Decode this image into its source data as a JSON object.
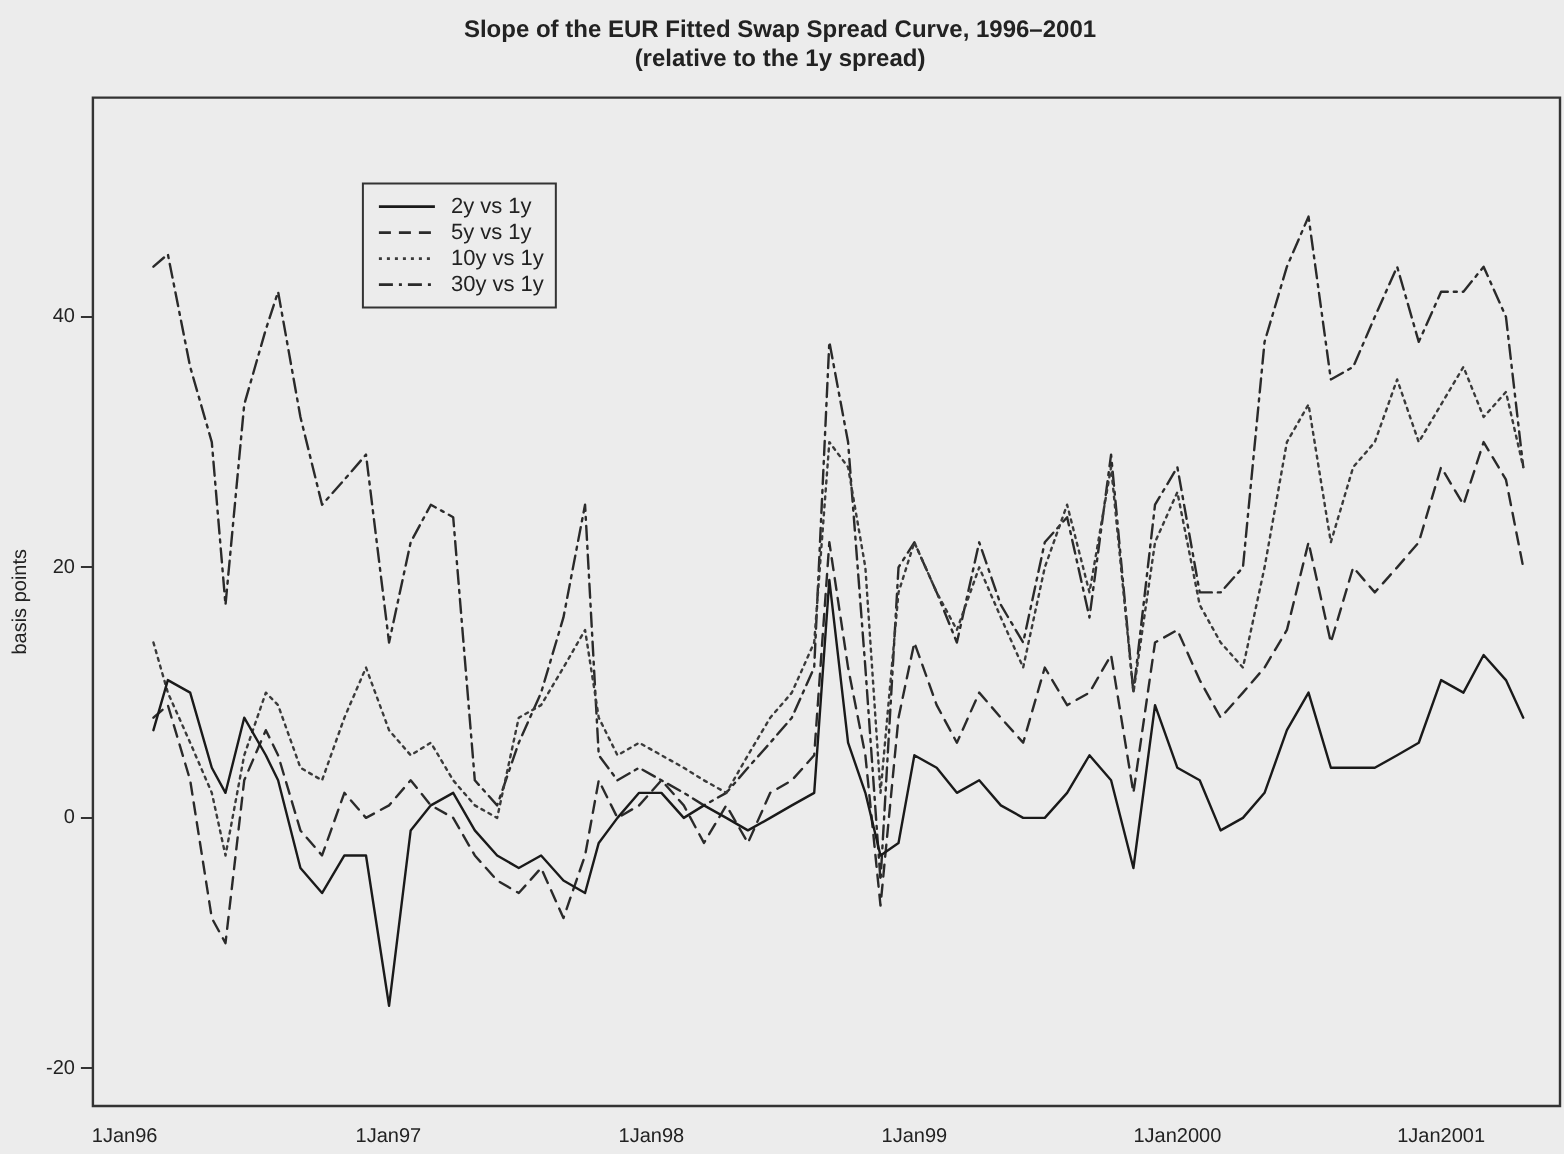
{
  "chart_data": {
    "type": "line",
    "title": "Slope of the EUR Fitted Swap Spread Curve, 1996–2001",
    "subtitle": "(relative to the 1y spread)",
    "ylabel": "basis points",
    "x": [
      "1996-02-10",
      "1996-03-01",
      "1996-04-01",
      "1996-05-01",
      "1996-05-20",
      "1996-06-15",
      "1996-07-15",
      "1996-08-01",
      "1996-09-01",
      "1996-10-01",
      "1996-11-01",
      "1996-12-01",
      "1997-01-02",
      "1997-02-01",
      "1997-03-01",
      "1997-04-01",
      "1997-05-01",
      "1997-06-01",
      "1997-07-01",
      "1997-08-01",
      "1997-09-01",
      "1997-10-01",
      "1997-10-20",
      "1997-11-15",
      "1997-12-15",
      "1998-01-15",
      "1998-02-15",
      "1998-03-15",
      "1998-04-15",
      "1998-05-15",
      "1998-06-15",
      "1998-07-15",
      "1998-08-15",
      "1998-09-05",
      "1998-10-01",
      "1998-10-25",
      "1998-11-15",
      "1998-12-10",
      "1999-01-01",
      "1999-02-01",
      "1999-03-01",
      "1999-04-01",
      "1999-05-01",
      "1999-06-01",
      "1999-07-01",
      "1999-08-01",
      "1999-09-01",
      "1999-10-01",
      "1999-11-01",
      "1999-12-01",
      "2000-01-01",
      "2000-02-01",
      "2000-03-01",
      "2000-04-01",
      "2000-05-01",
      "2000-06-01",
      "2000-07-01",
      "2000-08-01",
      "2000-09-01",
      "2000-10-01",
      "2000-11-01",
      "2000-12-01",
      "2001-01-01",
      "2001-02-01",
      "2001-03-01",
      "2001-04-01",
      "2001-04-25"
    ],
    "series": [
      {
        "name": "2y vs 1y",
        "color": "#1a1a1a",
        "line_style": "solid",
        "values": [
          7,
          11,
          10,
          4,
          2,
          8,
          5,
          3,
          -4,
          -6,
          -3,
          -3,
          -15,
          -1,
          1,
          2,
          -1,
          -3,
          -4,
          -3,
          -5,
          -6,
          -2,
          0,
          2,
          2,
          0,
          1,
          0,
          -1,
          0,
          1,
          2,
          19,
          6,
          2,
          -3,
          -2,
          5,
          4,
          2,
          3,
          1,
          0,
          0,
          2,
          5,
          3,
          -4,
          9,
          4,
          3,
          -1,
          0,
          2,
          7,
          10,
          4,
          4,
          4,
          5,
          6,
          11,
          10,
          13,
          11,
          8
        ]
      },
      {
        "name": "5y vs 1y",
        "color": "#2a2a2a",
        "line_style": "dashed",
        "values": [
          8,
          9,
          3,
          -8,
          -10,
          3,
          7,
          5,
          -1,
          -3,
          2,
          0,
          1,
          3,
          1,
          0,
          -3,
          -5,
          -6,
          -4,
          -8,
          -3,
          3,
          0,
          1,
          3,
          1,
          -2,
          1,
          -2,
          2,
          3,
          5,
          22,
          12,
          5,
          -7,
          8,
          14,
          9,
          6,
          10,
          8,
          6,
          12,
          9,
          10,
          13,
          2,
          14,
          15,
          11,
          8,
          10,
          12,
          15,
          22,
          14,
          20,
          18,
          20,
          22,
          28,
          25,
          30,
          27,
          20
        ]
      },
      {
        "name": "10y vs 1y",
        "color": "#3a3a3a",
        "line_style": "dotted",
        "values": [
          14,
          10,
          6,
          2,
          -3,
          5,
          10,
          9,
          4,
          3,
          8,
          12,
          7,
          5,
          6,
          3,
          1,
          0,
          8,
          9,
          12,
          15,
          8,
          5,
          6,
          5,
          4,
          3,
          2,
          5,
          8,
          10,
          14,
          30,
          28,
          20,
          2,
          18,
          22,
          18,
          15,
          20,
          16,
          12,
          20,
          25,
          18,
          28,
          10,
          22,
          26,
          17,
          14,
          12,
          20,
          30,
          33,
          22,
          28,
          30,
          35,
          30,
          33,
          36,
          32,
          34,
          28
        ]
      },
      {
        "name": "30y vs 1y",
        "color": "#2a2a2a",
        "line_style": "dashdot",
        "values": [
          44,
          45,
          36,
          30,
          17,
          33,
          39,
          42,
          32,
          25,
          27,
          29,
          14,
          22,
          25,
          24,
          3,
          1,
          6,
          10,
          16,
          25,
          5,
          3,
          4,
          3,
          2,
          1,
          2,
          4,
          6,
          8,
          12,
          38,
          30,
          12,
          -5,
          20,
          22,
          18,
          14,
          22,
          17,
          14,
          22,
          24,
          16,
          29,
          10,
          25,
          28,
          18,
          18,
          20,
          38,
          44,
          48,
          35,
          36,
          40,
          44,
          38,
          42,
          42,
          44,
          40,
          28
        ]
      }
    ],
    "xlim": [
      "1995-11-18",
      "2001-06-15"
    ],
    "xticks": [
      {
        "value": "1996-01-01",
        "label": "1Jan96"
      },
      {
        "value": "1997-01-01",
        "label": "1Jan97"
      },
      {
        "value": "1998-01-01",
        "label": "1Jan98"
      },
      {
        "value": "1999-01-01",
        "label": "1Jan99"
      },
      {
        "value": "2000-01-01",
        "label": "1Jan2000"
      },
      {
        "value": "2001-01-01",
        "label": "1Jan2001"
      }
    ],
    "ylim": [
      -23,
      57.5
    ],
    "yticks": [
      -20,
      0,
      20,
      40
    ],
    "legend": "top left",
    "grid": false
  }
}
